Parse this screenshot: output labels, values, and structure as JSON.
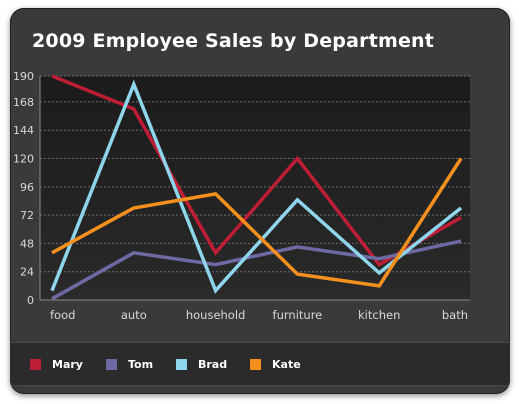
{
  "chart_data": {
    "type": "line",
    "title": "2009 Employee Sales by Department",
    "xlabel": "",
    "ylabel": "",
    "categories": [
      "food",
      "auto",
      "household",
      "furniture",
      "kitchen",
      "bath"
    ],
    "y_ticks": [
      0,
      24,
      48,
      72,
      96,
      120,
      144,
      168,
      190
    ],
    "ylim": [
      0,
      190
    ],
    "grid": true,
    "legend_position": "bottom",
    "series": [
      {
        "name": "Mary",
        "color": "#be1e35",
        "values": [
          190,
          162,
          40,
          120,
          30,
          70
        ]
      },
      {
        "name": "Tom",
        "color": "#6d6aa3",
        "values": [
          1,
          40,
          30,
          45,
          35,
          50
        ]
      },
      {
        "name": "Brad",
        "color": "#8fd6ec",
        "values": [
          8,
          183,
          8,
          85,
          23,
          78
        ]
      },
      {
        "name": "Kate",
        "color": "#f5901e",
        "values": [
          40,
          78,
          90,
          22,
          12,
          120
        ]
      }
    ]
  }
}
